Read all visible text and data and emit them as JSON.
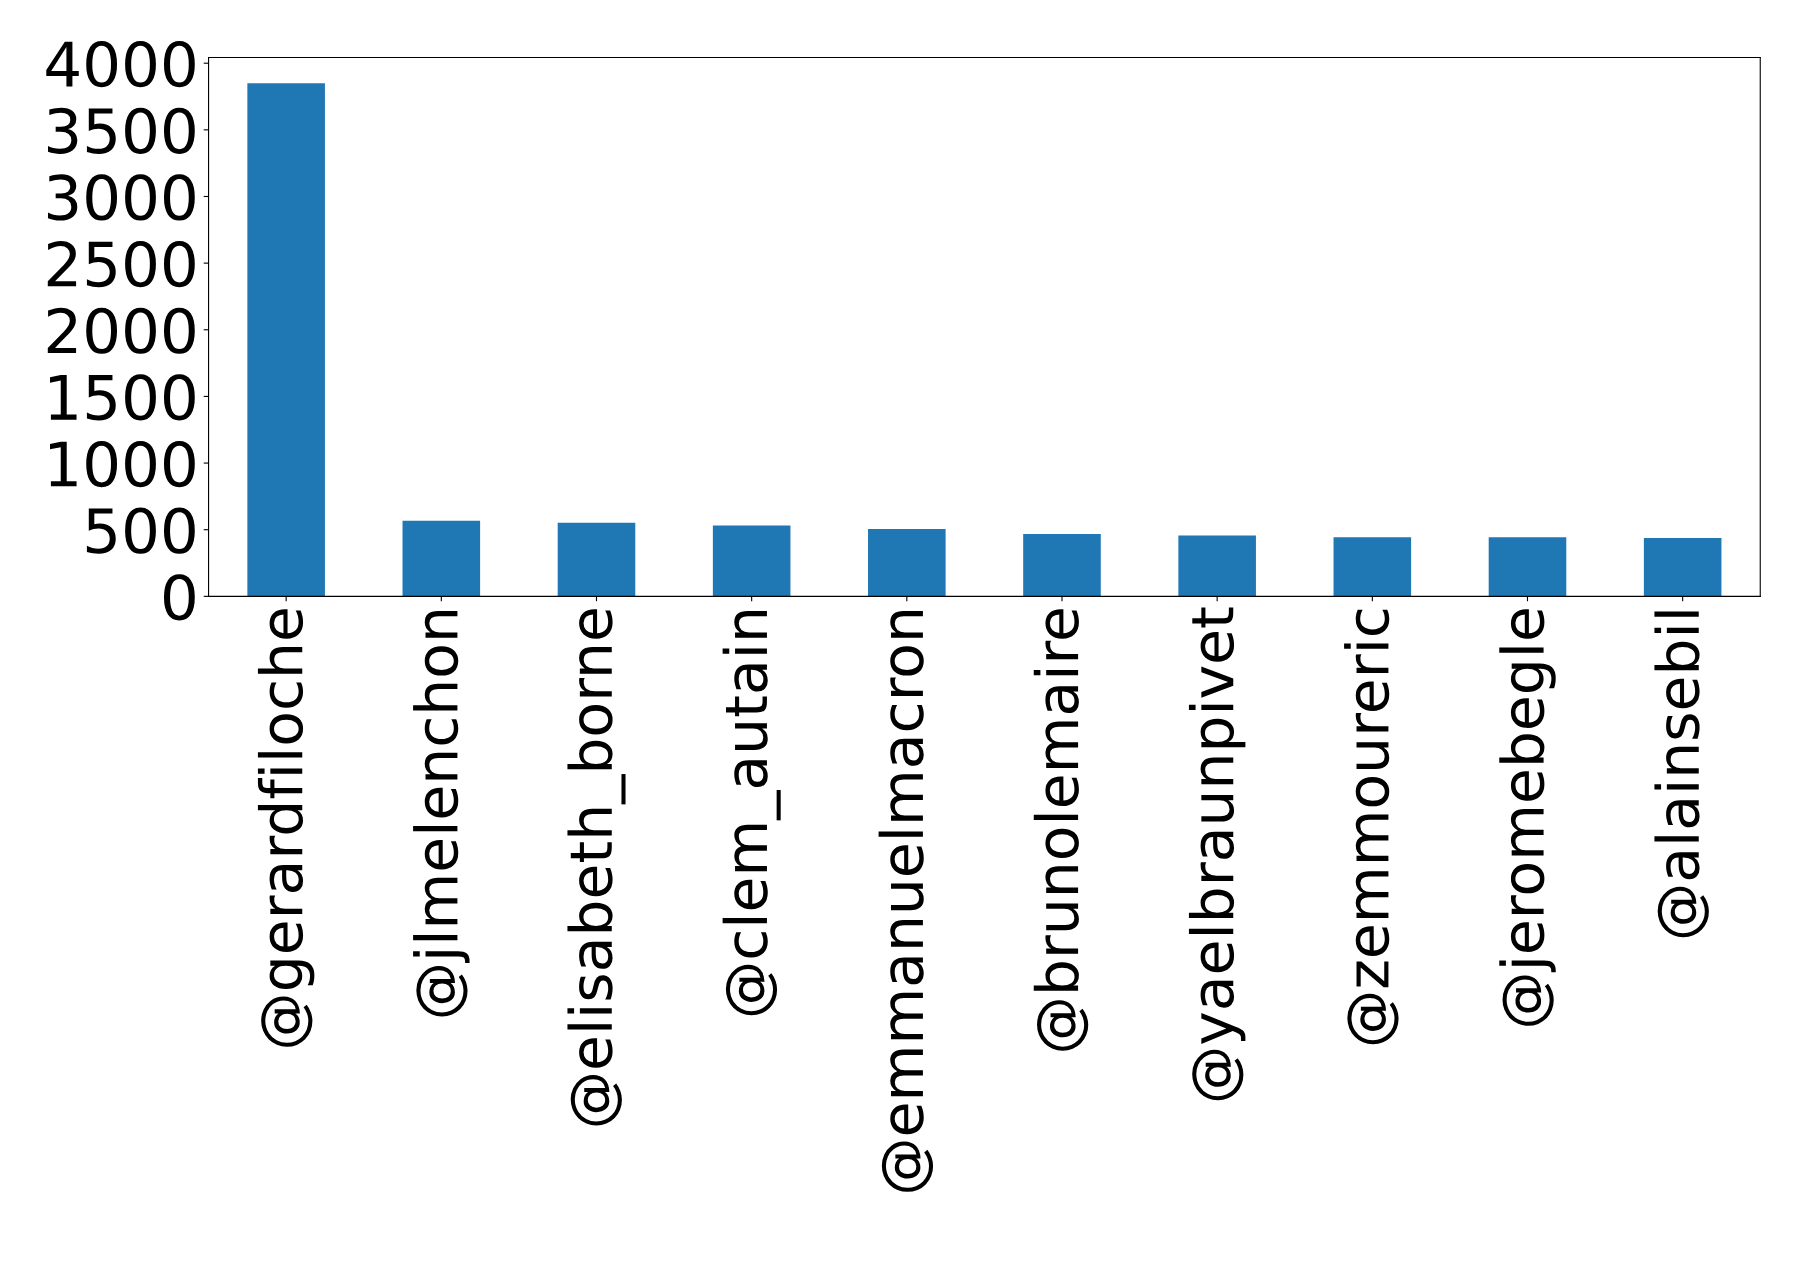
{
  "chart_data": {
    "type": "bar",
    "categories": [
      "@gerardfiloche",
      "@jlmelenchon",
      "@elisabeth_borne",
      "@clem_autain",
      "@emmanuelmacron",
      "@brunolemaire",
      "@yaelbraunpivet",
      "@zemmoureric",
      "@jeromebegle",
      "@alainsebil"
    ],
    "values": [
      3850,
      567,
      553,
      532,
      506,
      468,
      457,
      444,
      444,
      438
    ],
    "color": "#1f77b4",
    "ylim": [
      0,
      4043
    ],
    "yticks": [
      0,
      500,
      1000,
      1500,
      2000,
      2500,
      3000,
      3500,
      4000
    ],
    "grid": false
  }
}
